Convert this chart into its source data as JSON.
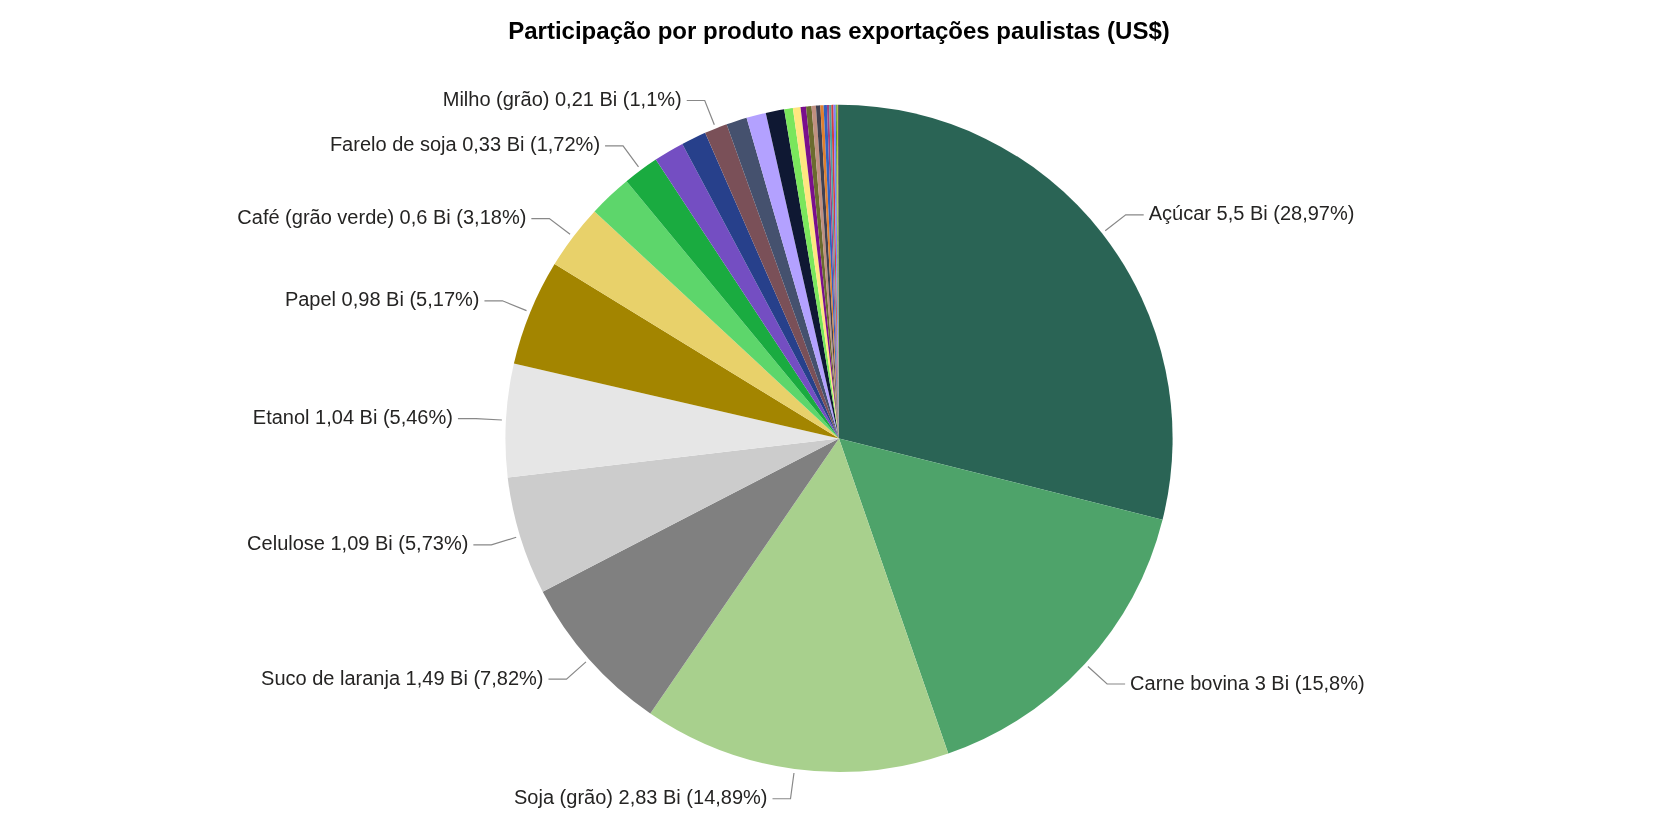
{
  "chart_data": {
    "type": "pie",
    "title": "Participação por produto nas exportações paulistas (US$)",
    "categories": [
      "Açúcar",
      "Carne bovina",
      "Soja (grão)",
      "Suco de laranja",
      "Celulose",
      "Etanol",
      "Papel",
      "Café (grão verde)",
      null,
      "Farelo de soja",
      null,
      null,
      "Milho (grão)",
      null,
      null,
      null,
      null,
      null,
      null,
      null,
      null,
      null,
      null,
      null,
      null,
      null,
      null,
      null,
      null,
      null,
      null
    ],
    "values": [
      5.5,
      3,
      2.83,
      1.49,
      1.09,
      1.04,
      0.98,
      0.6,
      0.4,
      0.33,
      0.28,
      0.23,
      0.21,
      0.19,
      0.18,
      0.17,
      0.08,
      0.07,
      0.05,
      0.05,
      0.04,
      0.04,
      0.03,
      0.03,
      0.02,
      0.02,
      0.02,
      0.02,
      0.01,
      0.01,
      0.01
    ],
    "value_labels": [
      "5,5 Bi (28,97%)",
      "3 Bi (15,8%)",
      "2,83 Bi (14,89%)",
      "1,49 Bi (7,82%)",
      "1,09 Bi (5,73%)",
      "1,04 Bi (5,46%)",
      "0,98 Bi (5,17%)",
      "0,6 Bi (3,18%)",
      null,
      "0,33 Bi (1,72%)",
      null,
      null,
      "0,21 Bi (1,1%)",
      null,
      null,
      null,
      null,
      null,
      null,
      null,
      null,
      null,
      null,
      null,
      null,
      null,
      null,
      null,
      null,
      null,
      null
    ],
    "colors": [
      "#2a6455",
      "#4ea36a",
      "#a8d08d",
      "#808080",
      "#cccccc",
      "#e6e6e6",
      "#a38500",
      "#e8d16a",
      "#5dd66b",
      "#1aab40",
      "#744ec2",
      "#27408b",
      "#7a5058",
      "#45516e",
      "#b3a1ff",
      "#0f1833",
      "#7ae65c",
      "#ffe680",
      "#7a0f8c",
      "#6b6b2e",
      "#c09080",
      "#404050",
      "#e08030",
      "#3060c0",
      "#a04080",
      "#50a0a0",
      "#d04040",
      "#8080ff",
      "#40a040",
      "#c0c040",
      "#606060"
    ]
  }
}
